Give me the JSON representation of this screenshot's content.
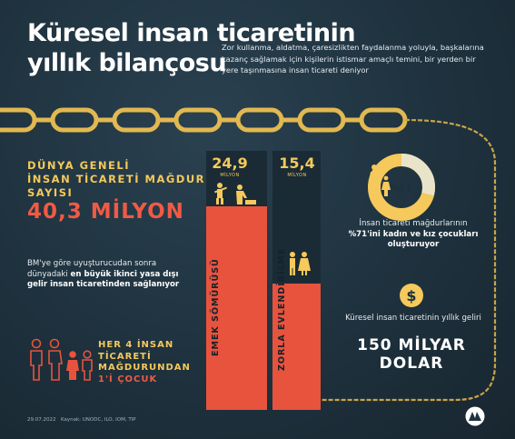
{
  "colors": {
    "background": "#1f3340",
    "accent_gold": "#f5c95b",
    "accent_red": "#f05a44",
    "bar": "#e8533e"
  },
  "title_line1": "Küresel insan ticaretinin",
  "title_line2": "yıllık bilançosu",
  "subtitle": "Zor kullanma, aldatma, çaresizlikten faydalanma yoluyla, başkalarına kazanç sağlamak için kişilerin istismar amaçlı temini, bir yerden bir yere taşınmasına insan ticareti deniyor",
  "global_victims": {
    "label_line1": "DÜNYA GENELİ",
    "label_line2": "İNSAN TİCARETİ MAĞDURU",
    "label_line3": "SAYISI",
    "value": "40,3 MİLYON"
  },
  "un_note": {
    "part1": "BM'ye göre uyuşturucudan sonra dünyadaki ",
    "bold": "en büyük ikinci yasa dışı gelir insan ticaretinden sağlanıyor"
  },
  "children_note": {
    "line1": "HER 4 İNSAN",
    "line2": "TİCARETİ",
    "line3": "MAĞDURUNDAN",
    "line4": "1'İ ÇOCUK"
  },
  "bars": [
    {
      "value": "24,9",
      "unit": "MİLYON",
      "label": "EMEK SÖMÜRÜSÜ",
      "icon": "labor-workers-icon"
    },
    {
      "value": "15,4",
      "unit": "MİLYON",
      "label": "ZORLA EVLENDİRİLME",
      "icon": "forced-marriage-couple-icon"
    }
  ],
  "chart_data": {
    "type": "bar",
    "categories": [
      "EMEK SÖMÜRÜSÜ",
      "ZORLA EVLENDİRİLME"
    ],
    "values": [
      24.9,
      15.4
    ],
    "ylabel": "MİLYON"
  },
  "women_share": {
    "percent": "%71",
    "percent_value": 71,
    "text1": "İnsan ticareti mağdurlarının ",
    "bold": "%71'ini kadın ve kız çocukları oluşturuyor"
  },
  "annual_profit": {
    "text": "Küresel insan ticaretinin yıllık geliri",
    "value_line1": "150 MİLYAR",
    "value_line2": "DOLAR",
    "icon": "dollar-coin-icon"
  },
  "footer": {
    "date": "29.07.2022",
    "source": "Kaynak: UNODC, ILO, IOM, TIP",
    "logo": "AA"
  }
}
